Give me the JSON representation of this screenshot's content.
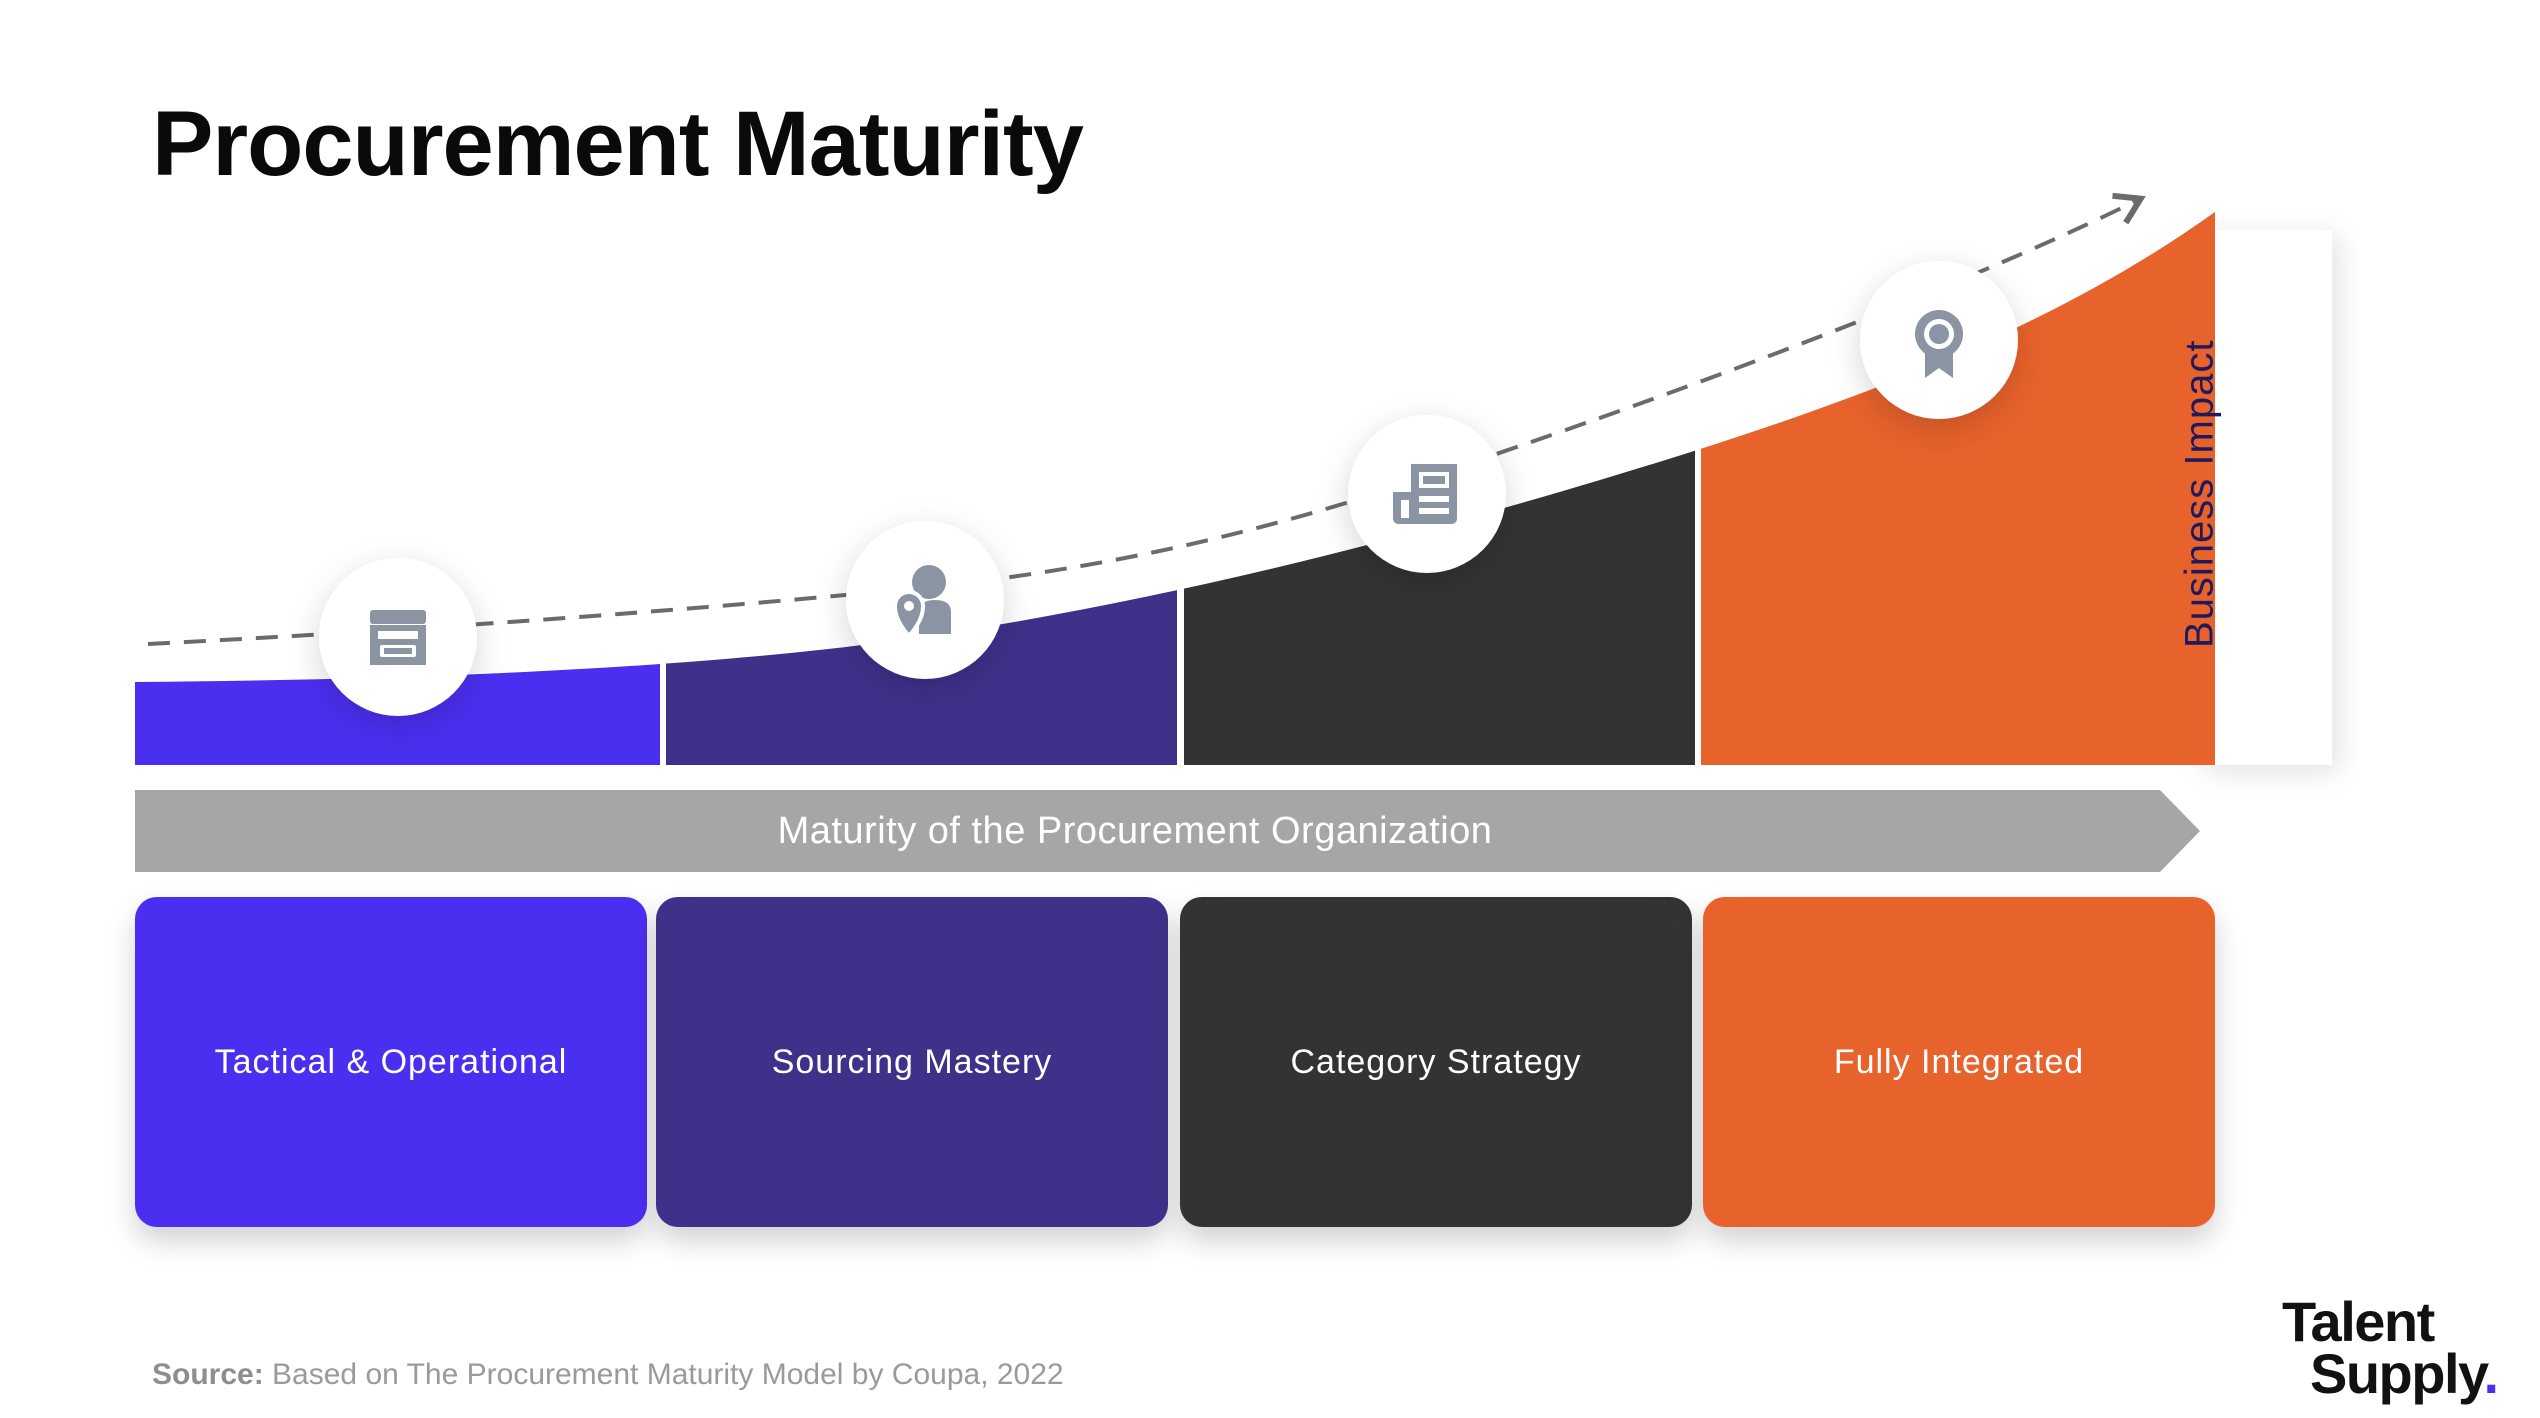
{
  "title": "Procurement Maturity",
  "y_axis_label": "Business Impact",
  "x_axis_label": "Maturity of the Procurement Organization",
  "stages": [
    {
      "label": "Tactical & Operational",
      "color": "#4a2ff0",
      "icon": "store-icon"
    },
    {
      "label": "Sourcing Mastery",
      "color": "#3d318a",
      "icon": "person-location-icon"
    },
    {
      "label": "Category Strategy",
      "color": "#333333",
      "icon": "newspaper-icon"
    },
    {
      "label": "Fully Integrated",
      "color": "#e8622c",
      "icon": "award-ribbon-icon"
    }
  ],
  "source": {
    "prefix": "Source:",
    "text": "Based on The Procurement Maturity Model by Coupa, 2022"
  },
  "logo": {
    "line1": "Talent",
    "line2": "Supply",
    "dot": ".",
    "dot_color": "#4a2ff0"
  },
  "colors": {
    "arrow_banner": "#a6a6a6",
    "dashed_trend": "#6b6b6b",
    "icon_gray": "#8a94a2"
  }
}
